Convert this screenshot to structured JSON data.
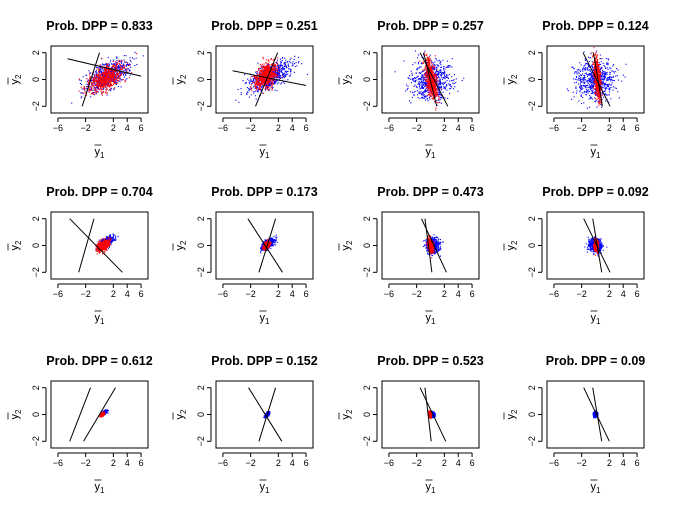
{
  "figure": {
    "x_ticks": [
      "−6",
      "−2",
      "2",
      "4",
      "6"
    ],
    "y_ticks": [
      "−2",
      "0",
      "2"
    ],
    "xlabel_main": "y",
    "xlabel_sub": "1",
    "ylabel_main": "y",
    "ylabel_sub": "2"
  },
  "colors": {
    "red": "#ff0000",
    "blue": "#0000ff",
    "line": "#000000",
    "frame": "#000000"
  },
  "chart_data": [
    {
      "type": "scatter",
      "title": "Prob. DPP =  0.833",
      "xlim": [
        -6,
        6
      ],
      "ylim": [
        -2,
        2
      ],
      "x_ticks": [
        -6,
        -2,
        2,
        4,
        6
      ],
      "y_ticks": [
        -2,
        0,
        2
      ],
      "xlabel": "y1",
      "ylabel": "y2",
      "grid": false,
      "series": [
        {
          "color": "blue",
          "center": [
            1.2,
            0.3
          ],
          "sd": [
            1.6,
            0.6
          ],
          "corr": 0.6
        },
        {
          "color": "red",
          "center": [
            0.9,
            0.1
          ],
          "sd": [
            1.3,
            0.55
          ],
          "corr": 0.6
        }
      ],
      "lines": [
        {
          "x0": -4.6,
          "y0": 1.55,
          "x1": 6.0,
          "y1": 0.25
        },
        {
          "x0": -2.5,
          "y0": -2.0,
          "x1": 0.0,
          "y1": 2.0
        }
      ]
    },
    {
      "type": "scatter",
      "title": "Prob. DPP =  0.251",
      "xlim": [
        -6,
        6
      ],
      "ylim": [
        -2,
        2
      ],
      "x_ticks": [
        -6,
        -2,
        2,
        4,
        6
      ],
      "y_ticks": [
        -2,
        0,
        2
      ],
      "xlabel": "y1",
      "ylabel": "y2",
      "grid": false,
      "series": [
        {
          "color": "blue",
          "center": [
            0.8,
            0.2
          ],
          "sd": [
            1.6,
            0.6
          ],
          "corr": 0.65
        },
        {
          "color": "red",
          "center": [
            0.2,
            0.3
          ],
          "sd": [
            0.8,
            0.5
          ],
          "corr": 0.5
        }
      ],
      "lines": [
        {
          "x0": -4.6,
          "y0": 0.65,
          "x1": 6.0,
          "y1": -0.45
        },
        {
          "x0": -1.3,
          "y0": -2.0,
          "x1": 1.9,
          "y1": 2.0
        }
      ]
    },
    {
      "type": "scatter",
      "title": "Prob. DPP =  0.257",
      "xlim": [
        -6,
        6
      ],
      "ylim": [
        -2,
        2
      ],
      "x_ticks": [
        -6,
        -2,
        2,
        4,
        6
      ],
      "y_ticks": [
        -2,
        0,
        2
      ],
      "xlabel": "y1",
      "ylabel": "y2",
      "grid": false,
      "series": [
        {
          "color": "blue",
          "center": [
            0.0,
            0.0
          ],
          "sd": [
            1.5,
            0.75
          ],
          "corr": 0.0
        },
        {
          "color": "red",
          "center": [
            0.1,
            0.0
          ],
          "sd": [
            0.45,
            0.75
          ],
          "corr": -0.6
        }
      ],
      "lines": [
        {
          "x0": -1.5,
          "y0": 2.0,
          "x1": 2.5,
          "y1": -2.0
        },
        {
          "x0": -1.0,
          "y0": 2.0,
          "x1": 0.9,
          "y1": -2.0
        }
      ]
    },
    {
      "type": "scatter",
      "title": "Prob. DPP =  0.124",
      "xlim": [
        -6,
        6
      ],
      "ylim": [
        -2,
        2
      ],
      "x_ticks": [
        -6,
        -2,
        2,
        4,
        6
      ],
      "y_ticks": [
        -2,
        0,
        2
      ],
      "xlabel": "y1",
      "ylabel": "y2",
      "grid": false,
      "series": [
        {
          "color": "blue",
          "center": [
            0.0,
            0.0
          ],
          "sd": [
            1.5,
            0.75
          ],
          "corr": 0.0
        },
        {
          "color": "red",
          "center": [
            0.3,
            0.0
          ],
          "sd": [
            0.25,
            0.8
          ],
          "corr": -0.5
        }
      ],
      "lines": [
        {
          "x0": -1.8,
          "y0": 2.0,
          "x1": 2.1,
          "y1": -2.0
        },
        {
          "x0": -0.3,
          "y0": 2.0,
          "x1": 1.0,
          "y1": -2.0
        }
      ]
    },
    {
      "type": "scatter",
      "title": "Prob. DPP =  0.704",
      "xlim": [
        -6,
        6
      ],
      "ylim": [
        -2,
        2
      ],
      "x_ticks": [
        -6,
        -2,
        2,
        4,
        6
      ],
      "y_ticks": [
        -2,
        0,
        2
      ],
      "xlabel": "y1",
      "ylabel": "y2",
      "grid": false,
      "series": [
        {
          "color": "blue",
          "center": [
            0.9,
            0.25
          ],
          "sd": [
            0.5,
            0.2
          ],
          "corr": 0.6
        },
        {
          "color": "red",
          "center": [
            0.5,
            0.0
          ],
          "sd": [
            0.45,
            0.2
          ],
          "corr": 0.5
        }
      ],
      "lines": [
        {
          "x0": -4.3,
          "y0": 2.0,
          "x1": 3.3,
          "y1": -2.0
        },
        {
          "x0": -3.0,
          "y0": -2.0,
          "x1": -0.8,
          "y1": 2.0
        }
      ]
    },
    {
      "type": "scatter",
      "title": "Prob. DPP =  0.173",
      "xlim": [
        -6,
        6
      ],
      "ylim": [
        -2,
        2
      ],
      "x_ticks": [
        -6,
        -2,
        2,
        4,
        6
      ],
      "y_ticks": [
        -2,
        0,
        2
      ],
      "xlabel": "y1",
      "ylabel": "y2",
      "grid": false,
      "series": [
        {
          "color": "blue",
          "center": [
            0.5,
            0.1
          ],
          "sd": [
            0.45,
            0.2
          ],
          "corr": 0.6
        },
        {
          "color": "red",
          "center": [
            0.3,
            0.0
          ],
          "sd": [
            0.2,
            0.12
          ],
          "corr": 0.4
        }
      ],
      "lines": [
        {
          "x0": -2.4,
          "y0": 2.0,
          "x1": 2.6,
          "y1": -2.0
        },
        {
          "x0": -0.8,
          "y0": -2.0,
          "x1": 1.6,
          "y1": 2.0
        }
      ]
    },
    {
      "type": "scatter",
      "title": "Prob. DPP =  0.473",
      "xlim": [
        -6,
        6
      ],
      "ylim": [
        -2,
        2
      ],
      "x_ticks": [
        -6,
        -2,
        2,
        4,
        6
      ],
      "y_ticks": [
        -2,
        0,
        2
      ],
      "xlabel": "y1",
      "ylabel": "y2",
      "grid": false,
      "series": [
        {
          "color": "blue",
          "center": [
            0.3,
            0.0
          ],
          "sd": [
            0.45,
            0.25
          ],
          "corr": 0.0
        },
        {
          "color": "red",
          "center": [
            0.0,
            0.0
          ],
          "sd": [
            0.2,
            0.25
          ],
          "corr": -0.4
        }
      ],
      "lines": [
        {
          "x0": -1.3,
          "y0": 2.0,
          "x1": 2.3,
          "y1": -2.0
        },
        {
          "x0": -0.8,
          "y0": 2.0,
          "x1": 0.2,
          "y1": -2.0
        }
      ]
    },
    {
      "type": "scatter",
      "title": "Prob. DPP =  0.092",
      "xlim": [
        -6,
        6
      ],
      "ylim": [
        -2,
        2
      ],
      "x_ticks": [
        -6,
        -2,
        2,
        4,
        6
      ],
      "y_ticks": [
        -2,
        0,
        2
      ],
      "xlabel": "y1",
      "ylabel": "y2",
      "grid": false,
      "series": [
        {
          "color": "blue",
          "center": [
            0.0,
            0.0
          ],
          "sd": [
            0.45,
            0.25
          ],
          "corr": 0.0
        },
        {
          "color": "red",
          "center": [
            0.1,
            0.0
          ],
          "sd": [
            0.12,
            0.2
          ],
          "corr": 0.0
        }
      ],
      "lines": [
        {
          "x0": -1.7,
          "y0": 2.0,
          "x1": 2.1,
          "y1": -2.0
        },
        {
          "x0": -0.4,
          "y0": 2.0,
          "x1": 0.9,
          "y1": -2.0
        }
      ]
    },
    {
      "type": "scatter",
      "title": "Prob. DPP =  0.612",
      "xlim": [
        -6,
        6
      ],
      "ylim": [
        -2,
        2
      ],
      "x_ticks": [
        -6,
        -2,
        2,
        4,
        6
      ],
      "y_ticks": [
        -2,
        0,
        2
      ],
      "xlabel": "y1",
      "ylabel": "y2",
      "grid": false,
      "series": [
        {
          "color": "blue",
          "center": [
            0.7,
            0.15
          ],
          "sd": [
            0.15,
            0.07
          ],
          "corr": 0.6
        },
        {
          "color": "red",
          "center": [
            0.4,
            0.0
          ],
          "sd": [
            0.12,
            0.06
          ],
          "corr": 0.5
        }
      ],
      "lines": [
        {
          "x0": -4.3,
          "y0": -2.0,
          "x1": -1.3,
          "y1": 2.0
        },
        {
          "x0": -2.3,
          "y0": -2.0,
          "x1": 2.3,
          "y1": 2.0
        }
      ]
    },
    {
      "type": "scatter",
      "title": "Prob. DPP =  0.152",
      "xlim": [
        -6,
        6
      ],
      "ylim": [
        -2,
        2
      ],
      "x_ticks": [
        -6,
        -2,
        2,
        4,
        6
      ],
      "y_ticks": [
        -2,
        0,
        2
      ],
      "xlabel": "y1",
      "ylabel": "y2",
      "grid": false,
      "series": [
        {
          "color": "blue",
          "center": [
            0.4,
            0.0
          ],
          "sd": [
            0.15,
            0.08
          ],
          "corr": 0.6
        }
      ],
      "lines": [
        {
          "x0": -2.3,
          "y0": 2.0,
          "x1": 2.5,
          "y1": -2.0
        },
        {
          "x0": -0.8,
          "y0": -2.0,
          "x1": 1.6,
          "y1": 2.0
        }
      ]
    },
    {
      "type": "scatter",
      "title": "Prob. DPP =  0.523",
      "xlim": [
        -6,
        6
      ],
      "ylim": [
        -2,
        2
      ],
      "x_ticks": [
        -6,
        -2,
        2,
        4,
        6
      ],
      "y_ticks": [
        -2,
        0,
        2
      ],
      "xlabel": "y1",
      "ylabel": "y2",
      "grid": false,
      "series": [
        {
          "color": "blue",
          "center": [
            0.3,
            0.0
          ],
          "sd": [
            0.15,
            0.08
          ],
          "corr": 0.0
        },
        {
          "color": "red",
          "center": [
            -0.1,
            0.0
          ],
          "sd": [
            0.1,
            0.1
          ],
          "corr": -0.3
        }
      ],
      "lines": [
        {
          "x0": -1.5,
          "y0": 2.0,
          "x1": 2.2,
          "y1": -2.0
        },
        {
          "x0": -0.8,
          "y0": 2.0,
          "x1": 0.1,
          "y1": -2.0
        }
      ]
    },
    {
      "type": "scatter",
      "title": "Prob. DPP =  0.09",
      "xlim": [
        -6,
        6
      ],
      "ylim": [
        -2,
        2
      ],
      "x_ticks": [
        -6,
        -2,
        2,
        4,
        6
      ],
      "y_ticks": [
        -2,
        0,
        2
      ],
      "xlabel": "y1",
      "ylabel": "y2",
      "grid": false,
      "series": [
        {
          "color": "blue",
          "center": [
            0.0,
            0.0
          ],
          "sd": [
            0.13,
            0.08
          ],
          "corr": 0.0
        }
      ],
      "lines": [
        {
          "x0": -1.7,
          "y0": 2.0,
          "x1": 2.0,
          "y1": -2.0
        },
        {
          "x0": -0.4,
          "y0": 2.0,
          "x1": 0.9,
          "y1": -2.0
        }
      ]
    }
  ]
}
